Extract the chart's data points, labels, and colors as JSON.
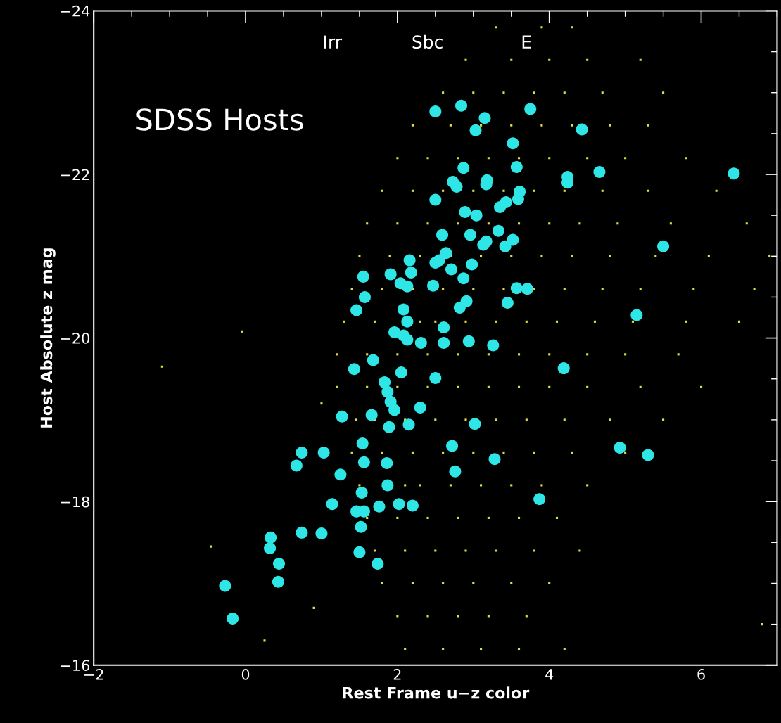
{
  "chart_data": {
    "type": "scatter",
    "xlabel": "Rest Frame u−z color",
    "ylabel": "Host Absolute z mag",
    "xlim": [
      -2,
      7
    ],
    "ylim": [
      -16,
      -24
    ],
    "xticks": [
      -2,
      0,
      2,
      4,
      6
    ],
    "yticks": [
      -24,
      -22,
      -20,
      -18,
      -16
    ],
    "grid": false,
    "legend": false,
    "annotations": [
      "SDSS Hosts",
      "Irr",
      "Sbc",
      "E"
    ],
    "series": [
      {
        "color": "#e6dc3c",
        "marker": "square",
        "x": [
          3.3,
          3.9,
          4.3,
          2.9,
          3.5,
          4.0,
          4.5,
          5.2,
          2.6,
          3.0,
          3.4,
          3.8,
          4.2,
          4.7,
          5.5,
          2.2,
          2.7,
          3.1,
          3.5,
          3.9,
          4.3,
          4.8,
          5.3,
          2.0,
          2.4,
          2.8,
          3.2,
          3.6,
          4.0,
          4.5,
          5.0,
          5.8,
          1.8,
          2.2,
          2.6,
          3.0,
          3.4,
          3.8,
          4.2,
          4.7,
          5.3,
          6.2,
          1.6,
          2.0,
          2.4,
          2.8,
          3.2,
          3.6,
          4.0,
          4.4,
          4.9,
          5.6,
          6.6,
          1.5,
          1.9,
          2.3,
          2.7,
          3.1,
          3.5,
          3.9,
          4.3,
          4.8,
          5.4,
          6.1,
          6.9,
          1.4,
          1.8,
          2.2,
          2.6,
          3.0,
          3.4,
          3.8,
          4.2,
          4.7,
          5.2,
          5.9,
          6.7,
          1.3,
          1.7,
          2.3,
          2.5,
          2.9,
          3.3,
          3.7,
          4.1,
          4.6,
          5.1,
          5.8,
          6.5,
          1.2,
          1.6,
          2.0,
          2.4,
          2.8,
          3.2,
          3.6,
          4.0,
          4.5,
          5.0,
          5.7,
          1.2,
          1.6,
          2.0,
          2.4,
          2.8,
          3.2,
          3.6,
          4.0,
          4.5,
          5.2,
          6.0,
          1.45,
          1.7,
          2.1,
          2.5,
          2.9,
          3.3,
          3.7,
          4.2,
          4.8,
          5.5,
          1.4,
          1.8,
          2.2,
          2.6,
          3.0,
          3.4,
          3.8,
          4.3,
          5.0,
          1.5,
          2.1,
          2.3,
          2.7,
          3.1,
          3.5,
          3.9,
          4.5,
          1.6,
          2.0,
          2.4,
          2.8,
          3.2,
          3.6,
          4.1,
          1.7,
          2.1,
          2.5,
          2.9,
          3.3,
          3.8,
          4.4,
          1.8,
          2.2,
          2.6,
          3.0,
          3.5,
          4.0,
          2.0,
          2.4,
          2.8,
          3.2,
          3.7,
          2.1,
          2.6,
          3.1,
          3.6,
          4.2,
          -1.1,
          -0.05,
          -0.45,
          0.25,
          0.9,
          1.0,
          6.8
        ],
        "values": [
          -23.8,
          -23.8,
          -23.8,
          -23.4,
          -23.4,
          -23.4,
          -23.4,
          -23.4,
          -23.0,
          -23.0,
          -23.0,
          -23.0,
          -23.0,
          -23.0,
          -23.0,
          -22.6,
          -22.6,
          -22.6,
          -22.6,
          -22.6,
          -22.6,
          -22.6,
          -22.6,
          -22.2,
          -22.2,
          -22.2,
          -22.2,
          -22.2,
          -22.2,
          -22.2,
          -22.2,
          -22.2,
          -21.8,
          -21.8,
          -21.8,
          -21.8,
          -21.8,
          -21.8,
          -21.8,
          -21.8,
          -21.8,
          -21.8,
          -21.4,
          -21.4,
          -21.4,
          -21.4,
          -21.4,
          -21.4,
          -21.4,
          -21.4,
          -21.4,
          -21.4,
          -21.4,
          -21.0,
          -21.0,
          -21.0,
          -21.0,
          -21.0,
          -21.0,
          -21.0,
          -21.0,
          -21.0,
          -21.0,
          -21.0,
          -21.0,
          -20.6,
          -20.6,
          -20.6,
          -20.6,
          -20.6,
          -20.6,
          -20.6,
          -20.6,
          -20.6,
          -20.6,
          -20.6,
          -20.6,
          -20.2,
          -20.2,
          -20.2,
          -20.2,
          -20.2,
          -20.2,
          -20.2,
          -20.2,
          -20.2,
          -20.2,
          -20.2,
          -20.2,
          -19.8,
          -19.8,
          -19.8,
          -19.8,
          -19.8,
          -19.8,
          -19.8,
          -19.8,
          -19.8,
          -19.8,
          -19.8,
          -19.4,
          -19.4,
          -19.4,
          -19.4,
          -19.4,
          -19.4,
          -19.4,
          -19.4,
          -19.4,
          -19.4,
          -19.4,
          -19.0,
          -19.0,
          -19.0,
          -19.0,
          -19.0,
          -19.0,
          -19.0,
          -19.0,
          -19.0,
          -19.0,
          -18.6,
          -18.6,
          -18.6,
          -18.6,
          -18.6,
          -18.6,
          -18.6,
          -18.6,
          -18.6,
          -18.2,
          -18.2,
          -18.2,
          -18.2,
          -18.2,
          -18.2,
          -18.2,
          -18.2,
          -17.8,
          -17.8,
          -17.8,
          -17.8,
          -17.8,
          -17.8,
          -17.8,
          -17.4,
          -17.4,
          -17.4,
          -17.4,
          -17.4,
          -17.4,
          -17.4,
          -17.0,
          -17.0,
          -17.0,
          -17.0,
          -17.0,
          -17.0,
          -16.6,
          -16.6,
          -16.6,
          -16.6,
          -16.6,
          -16.2,
          -16.2,
          -16.2,
          -16.2,
          -16.2,
          -19.65,
          -20.08,
          -17.45,
          -16.3,
          -16.7,
          -19.2,
          -16.5
        ]
      },
      {
        "color": "#2ee6e6",
        "marker": "circle",
        "x": [
          2.5,
          2.84,
          3.15,
          3.03,
          3.75,
          4.43,
          3.52,
          6.43,
          4.66,
          4.24,
          4.24,
          2.87,
          3.57,
          2.73,
          2.78,
          3.18,
          3.17,
          2.5,
          3.61,
          3.59,
          2.89,
          3.04,
          3.43,
          3.35,
          2.59,
          2.96,
          3.17,
          3.13,
          3.33,
          3.52,
          3.42,
          5.5,
          2.16,
          2.18,
          2.5,
          2.55,
          2.64,
          2.71,
          2.98,
          1.55,
          1.91,
          2.04,
          2.13,
          2.47,
          2.87,
          3.57,
          3.71,
          3.45,
          1.57,
          1.46,
          2.08,
          2.82,
          2.91,
          5.15,
          2.13,
          1.96,
          2.08,
          2.13,
          2.31,
          2.61,
          2.61,
          2.94,
          3.26,
          1.43,
          1.68,
          2.05,
          2.5,
          4.19,
          1.83,
          1.87,
          1.91,
          1.96,
          2.3,
          1.66,
          1.27,
          1.89,
          2.15,
          3.02,
          1.54,
          2.72,
          4.93,
          5.3,
          3.28,
          1.03,
          0.74,
          0.67,
          1.56,
          1.86,
          2.76,
          1.25,
          1.87,
          1.53,
          1.14,
          1.76,
          2.02,
          2.2,
          3.87,
          1.46,
          1.56,
          1.52,
          0.74,
          1.0,
          0.33,
          0.32,
          1.5,
          0.44,
          1.74,
          0.43,
          -0.27,
          -0.17
        ],
        "values": [
          -22.77,
          -22.84,
          -22.69,
          -22.54,
          -22.8,
          -22.55,
          -22.38,
          -22.01,
          -22.03,
          -21.97,
          -21.9,
          -22.08,
          -22.09,
          -21.91,
          -21.85,
          -21.93,
          -21.88,
          -21.69,
          -21.79,
          -21.7,
          -21.54,
          -21.5,
          -21.66,
          -21.6,
          -21.26,
          -21.26,
          -21.18,
          -21.14,
          -21.31,
          -21.2,
          -21.12,
          -21.12,
          -20.95,
          -20.8,
          -20.92,
          -20.95,
          -21.04,
          -20.84,
          -20.9,
          -20.75,
          -20.78,
          -20.67,
          -20.63,
          -20.64,
          -20.73,
          -20.61,
          -20.6,
          -20.43,
          -20.5,
          -20.34,
          -20.35,
          -20.37,
          -20.45,
          -20.28,
          -20.2,
          -20.07,
          -20.03,
          -19.98,
          -19.94,
          -20.13,
          -19.94,
          -19.96,
          -19.91,
          -19.62,
          -19.73,
          -19.58,
          -19.51,
          -19.63,
          -19.46,
          -19.34,
          -19.22,
          -19.12,
          -19.15,
          -19.06,
          -19.04,
          -18.91,
          -18.94,
          -18.95,
          -18.71,
          -18.68,
          -18.66,
          -18.57,
          -18.52,
          -18.6,
          -18.6,
          -18.44,
          -18.48,
          -18.47,
          -18.37,
          -18.33,
          -18.2,
          -18.11,
          -17.97,
          -17.94,
          -17.97,
          -17.95,
          -18.03,
          -17.88,
          -17.88,
          -17.69,
          -17.62,
          -17.61,
          -17.56,
          -17.43,
          -17.38,
          -17.24,
          -17.24,
          -17.02,
          -16.97,
          -16.57
        ]
      }
    ]
  }
}
